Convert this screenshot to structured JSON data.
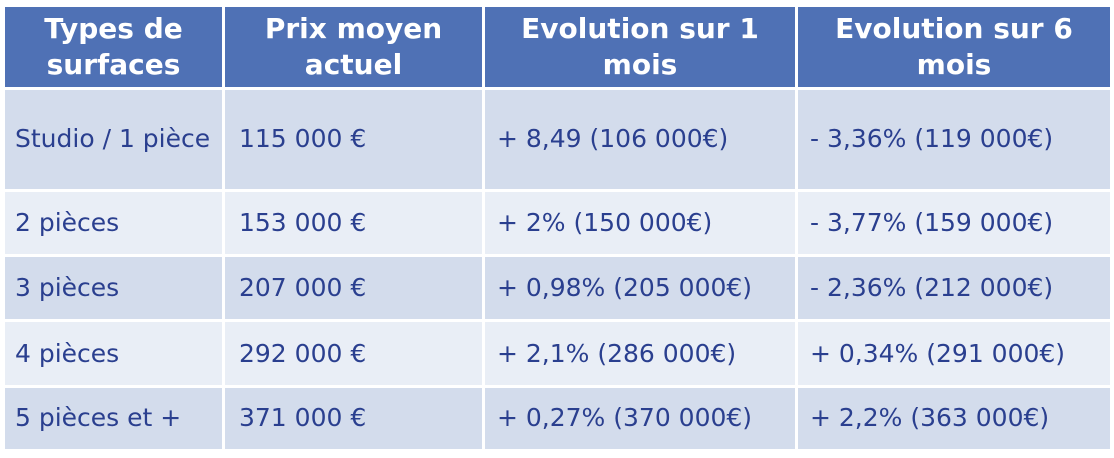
{
  "chart_data": {
    "type": "table",
    "columns": [
      "Types de surfaces",
      "Prix moyen actuel",
      "Evolution sur 1 mois",
      "Evolution sur 6 mois"
    ],
    "rows": [
      [
        "Studio / 1 pièce",
        "115 000 €",
        "+ 8,49 (106 000€)",
        "- 3,36% (119 000€)"
      ],
      [
        "2 pièces",
        "153 000 €",
        "+ 2% (150 000€)",
        "- 3,77% (159 000€)"
      ],
      [
        "3 pièces",
        "207 000 €",
        "+ 0,98% (205 000€)",
        "- 2,36% (212 000€)"
      ],
      [
        "4 pièces",
        "292 000 €",
        "+ 2,1% (286 000€)",
        "+ 0,34% (291 000€)"
      ],
      [
        "5 pièces et +",
        "371 000 €",
        "+ 0,27% (370 000€)",
        "+ 2,2% (363 000€)"
      ]
    ]
  },
  "colors": {
    "header_bg": "#4f71b5",
    "header_text": "#ffffff",
    "row_odd_bg": "#d3dcec",
    "row_even_bg": "#e9eef6",
    "cell_text": "#2a3f8f"
  }
}
